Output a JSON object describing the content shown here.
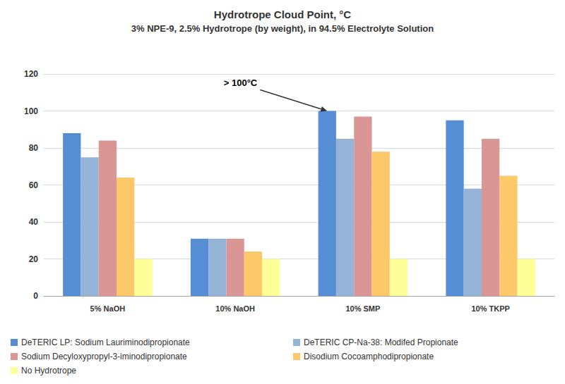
{
  "chart_data": {
    "type": "bar",
    "title": "Hydrotrope Cloud Point, °C",
    "subtitle": "3% NPE-9, 2.5% Hydrotrope (by weight), in 94.5% Electrolyte Solution",
    "categories": [
      "5% NaOH",
      "10% NaOH",
      "10% SMP",
      "10% TKPP"
    ],
    "series": [
      {
        "name": "DeTERIC LP: Sodium Lauriminodipropionate",
        "color": "#558ed5",
        "values": [
          88,
          31,
          100,
          95
        ]
      },
      {
        "name": "DeTERIC CP-Na-38: Modifed Propionate",
        "color": "#95b3d7",
        "values": [
          75,
          31,
          85,
          58
        ]
      },
      {
        "name": "Sodium Decyloxypropyl-3-iminodipropionate",
        "color": "#d99694",
        "values": [
          84,
          31,
          97,
          85
        ]
      },
      {
        "name": "Disodium Cocoamphodipropionate",
        "color": "#fcc86a",
        "values": [
          64,
          24,
          78,
          65
        ]
      },
      {
        "name": "No Hydrotrope",
        "color": "#ffff99",
        "values": [
          20,
          20,
          20,
          20
        ]
      }
    ],
    "ylim": [
      0,
      120
    ],
    "yticks": [
      0,
      20,
      40,
      60,
      80,
      100,
      120
    ],
    "grid": true,
    "legend": "bottom",
    "annotations": [
      {
        "text": "> 100°C",
        "category": "10% SMP",
        "series": "DeTERIC LP: Sodium Lauriminodipropionate"
      }
    ]
  }
}
